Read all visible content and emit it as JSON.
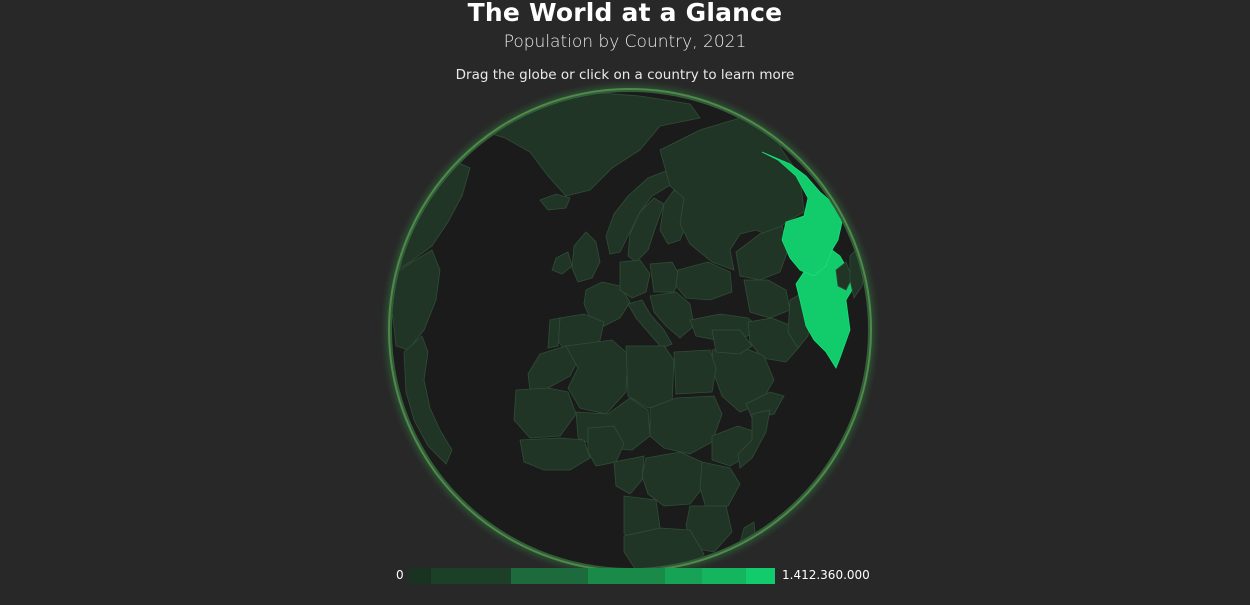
{
  "header": {
    "title": "The World at a Glance",
    "subtitle": "Population by Country, 2021",
    "hint": "Drag the globe or click on a country to learn more"
  },
  "legend": {
    "min_label": "0",
    "max_label": "1.412.360.000",
    "steps": [
      {
        "color": "#183322",
        "weight": 6
      },
      {
        "color": "#1c3f28",
        "weight": 22
      },
      {
        "color": "#1d6b3c",
        "weight": 21
      },
      {
        "color": "#1a8a48",
        "weight": 21
      },
      {
        "color": "#16a355",
        "weight": 10
      },
      {
        "color": "#14b55e",
        "weight": 12
      },
      {
        "color": "#12cc6c",
        "weight": 8
      }
    ]
  },
  "colors": {
    "background": "#282828",
    "ocean": "#1b1b1b",
    "land_low": "#213527",
    "land_high": "#12cc6c",
    "glow": "#3a8a4a"
  }
}
